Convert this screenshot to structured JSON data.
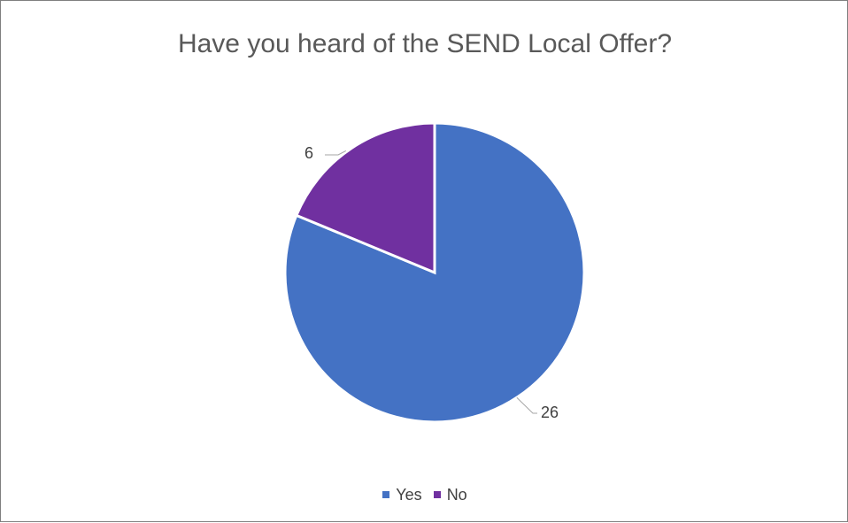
{
  "chart_data": {
    "type": "pie",
    "title": "Have you heard of the SEND Local Offer?",
    "categories": [
      "Yes",
      "No"
    ],
    "values": [
      26,
      6
    ],
    "colors": [
      "#4472C4",
      "#7030A0"
    ],
    "data_labels": [
      "26",
      "6"
    ],
    "legend_position": "bottom",
    "start_angle_deg": 0,
    "direction": "clockwise"
  }
}
